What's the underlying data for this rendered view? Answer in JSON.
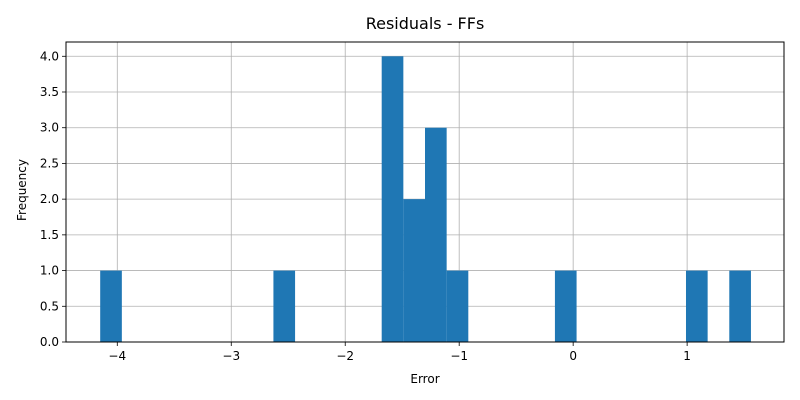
{
  "chart_data": {
    "type": "bar",
    "title": "Residuals - FFs",
    "xlabel": "Error",
    "ylabel": "Frequency",
    "xlim": [
      -4.45,
      1.85
    ],
    "ylim": [
      0,
      4.2
    ],
    "grid": true,
    "bar_color": "#1f77b4",
    "bin_width": 0.19,
    "bins": [
      {
        "x": -4.15,
        "count": 1
      },
      {
        "x": -2.63,
        "count": 1
      },
      {
        "x": -1.68,
        "count": 4
      },
      {
        "x": -1.49,
        "count": 2
      },
      {
        "x": -1.3,
        "count": 3
      },
      {
        "x": -1.11,
        "count": 1
      },
      {
        "x": -0.16,
        "count": 1
      },
      {
        "x": 0.99,
        "count": 1
      },
      {
        "x": 1.37,
        "count": 1
      }
    ],
    "x_ticks": [
      {
        "value": -4,
        "label": "−4"
      },
      {
        "value": -3,
        "label": "−3"
      },
      {
        "value": -2,
        "label": "−2"
      },
      {
        "value": -1,
        "label": "−1"
      },
      {
        "value": 0,
        "label": "0"
      },
      {
        "value": 1,
        "label": "1"
      }
    ],
    "y_ticks": [
      {
        "value": 0,
        "label": "0.0"
      },
      {
        "value": 0.5,
        "label": "0.5"
      },
      {
        "value": 1,
        "label": "1.0"
      },
      {
        "value": 1.5,
        "label": "1.5"
      },
      {
        "value": 2,
        "label": "2.0"
      },
      {
        "value": 2.5,
        "label": "2.5"
      },
      {
        "value": 3,
        "label": "3.0"
      },
      {
        "value": 3.5,
        "label": "3.5"
      },
      {
        "value": 4,
        "label": "4.0"
      }
    ]
  }
}
